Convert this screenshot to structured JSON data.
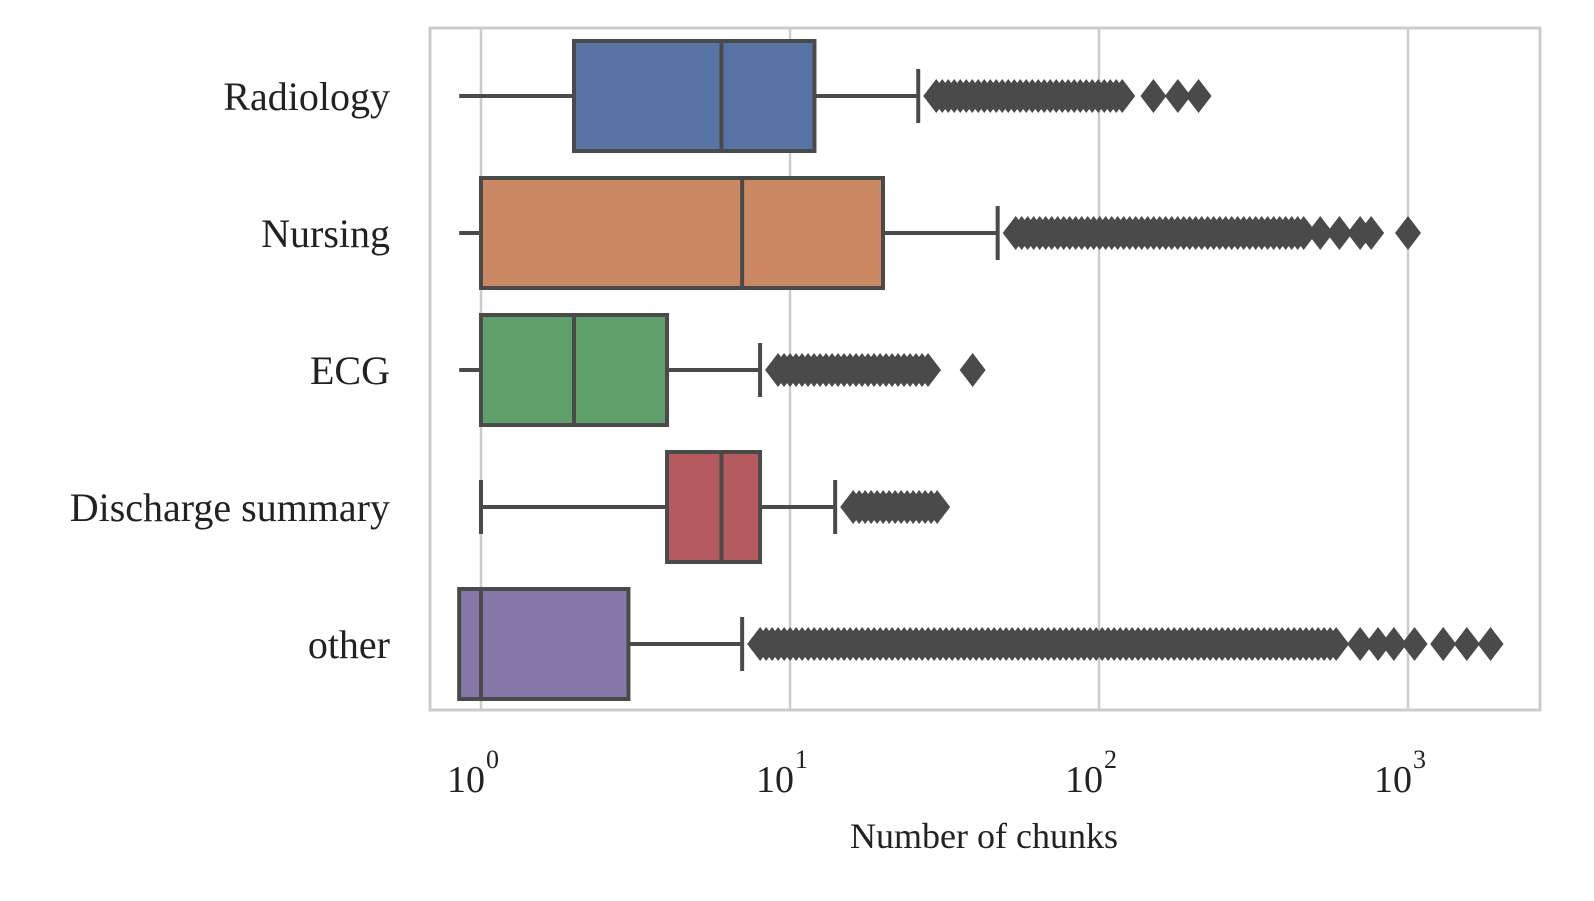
{
  "chart_data": {
    "type": "boxplot",
    "orientation": "horizontal",
    "xlabel": "Number of chunks",
    "ylabel": "",
    "xscale": "log",
    "xlim": [
      0.85,
      2800
    ],
    "x_ticks": [
      {
        "value": 1,
        "base": "10",
        "exp": "0"
      },
      {
        "value": 10,
        "base": "10",
        "exp": "1"
      },
      {
        "value": 100,
        "base": "10",
        "exp": "2"
      },
      {
        "value": 1000,
        "base": "10",
        "exp": "3"
      }
    ],
    "grid": "vertical",
    "colors": {
      "frame": "#cccccc",
      "grid": "#cccccc",
      "line": "#4a4a4a",
      "outlier": "#4a4a4a"
    },
    "categories": [
      "Radiology",
      "Nursing",
      "ECG",
      "Discharge summary",
      "other"
    ],
    "boxes": [
      {
        "category": "Radiology",
        "color": "#5874a5",
        "whisker_low": 0.85,
        "q1": 2,
        "median": 6,
        "q3": 12,
        "whisker_high": 26,
        "outlier_range": [
          26,
          120
        ],
        "outliers": [
          150,
          180,
          210
        ]
      },
      {
        "category": "Nursing",
        "color": "#cb8963",
        "whisker_low": 0.85,
        "q1": 1,
        "median": 7,
        "q3": 20,
        "whisker_high": 47,
        "outlier_range": [
          47,
          460
        ],
        "outliers": [
          520,
          600,
          700,
          760,
          1000
        ]
      },
      {
        "category": "ECG",
        "color": "#5e9f6b",
        "whisker_low": 0.85,
        "q1": 1,
        "median": 2,
        "q3": 4,
        "whisker_high": 8,
        "outlier_range": [
          8,
          28
        ],
        "outliers": [
          39
        ]
      },
      {
        "category": "Discharge summary",
        "color": "#b55a5f",
        "whisker_low": 1,
        "q1": 4,
        "median": 6,
        "q3": 8,
        "whisker_high": 14,
        "outlier_range": [
          14,
          30
        ],
        "outliers": []
      },
      {
        "category": "other",
        "color": "#8679aa",
        "whisker_low": 0.85,
        "q1": 0.85,
        "median": 1,
        "q3": 3,
        "whisker_high": 7,
        "outlier_range": [
          7,
          600
        ],
        "outliers": [
          700,
          800,
          900,
          1050,
          1300,
          1550,
          1850
        ]
      }
    ]
  }
}
